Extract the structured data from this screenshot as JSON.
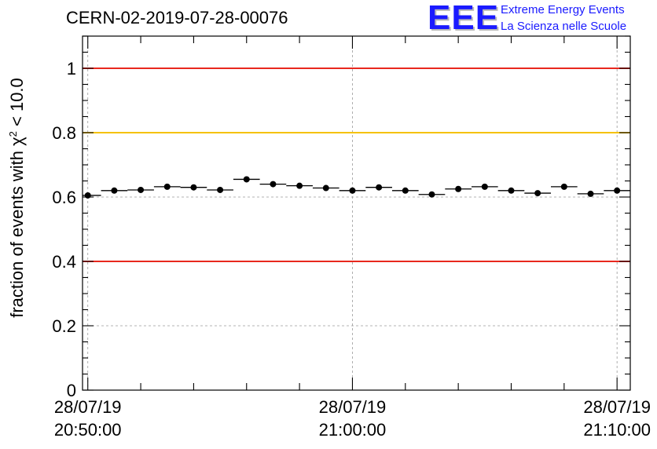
{
  "title": "CERN-02-2019-07-28-00076",
  "logo": {
    "mark": "EEE",
    "line1": "Extreme Energy Events",
    "line2": "La Scienza nelle Scuole"
  },
  "colors": {
    "red_line": "#e8281e",
    "yellow_line": "#f5c200",
    "markers": "#000000",
    "logo_blue": "#1a1aff"
  },
  "chart_data": {
    "type": "scatter",
    "title": "CERN-02-2019-07-28-00076",
    "ylabel_prefix": "fraction of events with χ",
    "ylabel_sup": "2",
    "ylabel_suffix": " < 10.0",
    "ylim": [
      0,
      1.1
    ],
    "yticks": [
      0,
      0.2,
      0.4,
      0.6,
      0.8,
      1
    ],
    "ytick_labels": [
      "0",
      "0.2",
      "0.4",
      "0.6",
      "0.8",
      "1"
    ],
    "xlim_minutes": [
      -0.2,
      20.5
    ],
    "xticks_major": [
      {
        "minute": 0,
        "date": "28/07/19",
        "time": "20:50:00"
      },
      {
        "minute": 10,
        "date": "28/07/19",
        "time": "21:00:00"
      },
      {
        "minute": 20,
        "date": "28/07/19",
        "time": "21:10:00"
      }
    ],
    "x_minor_step_minutes": 2,
    "bin_width_minutes": 1,
    "reference_lines": [
      {
        "y": 1.0,
        "color": "red"
      },
      {
        "y": 0.8,
        "color": "yellow"
      },
      {
        "y": 0.4,
        "color": "red"
      }
    ],
    "grid": true,
    "x_minutes": [
      0,
      1,
      2,
      3,
      4,
      5,
      6,
      7,
      8,
      9,
      10,
      11,
      12,
      13,
      14,
      15,
      16,
      17,
      18,
      19,
      20
    ],
    "values": [
      0.605,
      0.62,
      0.622,
      0.632,
      0.63,
      0.622,
      0.655,
      0.64,
      0.635,
      0.628,
      0.62,
      0.63,
      0.62,
      0.608,
      0.625,
      0.632,
      0.62,
      0.612,
      0.632,
      0.61,
      0.62
    ]
  }
}
